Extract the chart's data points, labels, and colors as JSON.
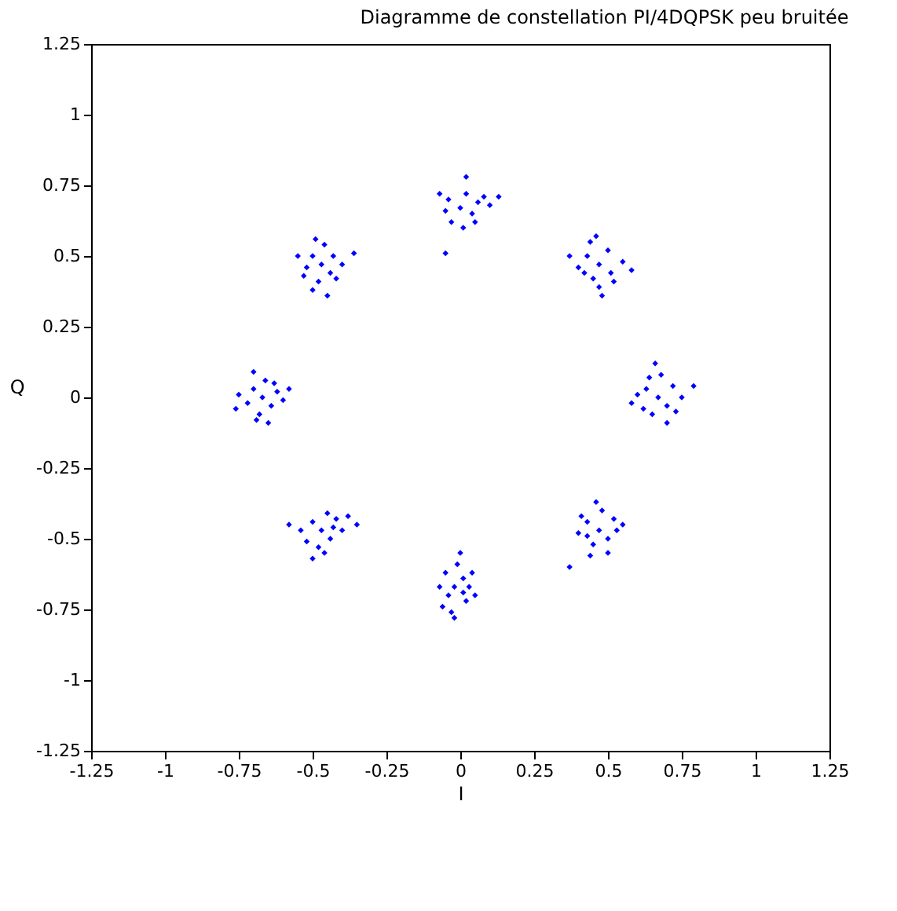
{
  "chart_data": {
    "type": "scatter",
    "title": "Diagramme de constellation PI/4DQPSK peu bruitée",
    "xlabel": "I",
    "ylabel": "Q",
    "xlim": [
      -1.25,
      1.25
    ],
    "ylim": [
      -1.25,
      1.25
    ],
    "xticks": [
      -1.25,
      -1,
      -0.75,
      -0.5,
      -0.25,
      0,
      0.25,
      0.5,
      0.75,
      1,
      1.25
    ],
    "yticks": [
      -1.25,
      -1,
      -0.75,
      -0.5,
      -0.25,
      0,
      0.25,
      0.5,
      0.75,
      1,
      1.25
    ],
    "grid": false,
    "marker": "diamond",
    "series": [
      {
        "color": "#0000ff",
        "x": [
          0,
          -0.04,
          0.04,
          0.02,
          -0.03,
          0.06,
          0.01,
          -0.05,
          0.08,
          0.13,
          -0.05,
          0.02,
          -0.07,
          0.05,
          0.1,
          0.47,
          0.43,
          0.51,
          0.45,
          0.5,
          0.4,
          0.55,
          0.47,
          0.44,
          0.52,
          0.37,
          0.58,
          0.48,
          0.46,
          0.42,
          0.67,
          0.63,
          0.7,
          0.65,
          0.72,
          0.6,
          0.68,
          0.75,
          0.62,
          0.66,
          0.79,
          0.58,
          0.7,
          0.64,
          0.73,
          0.47,
          0.43,
          0.5,
          0.45,
          0.52,
          0.4,
          0.48,
          0.44,
          0.53,
          0.37,
          0.46,
          0.5,
          0.41,
          0.55,
          0.43,
          -0.02,
          0.01,
          -0.04,
          0.02,
          -0.05,
          0.03,
          -0.01,
          -0.03,
          0.05,
          -0.07,
          0.0,
          -0.06,
          0.04,
          -0.02,
          0.01,
          -0.47,
          -0.5,
          -0.44,
          -0.52,
          -0.42,
          -0.48,
          -0.54,
          -0.45,
          -0.4,
          -0.5,
          -0.35,
          -0.58,
          -0.46,
          -0.43,
          -0.38,
          -0.67,
          -0.7,
          -0.64,
          -0.72,
          -0.62,
          -0.68,
          -0.66,
          -0.75,
          -0.6,
          -0.7,
          -0.65,
          -0.76,
          -0.58,
          -0.63,
          -0.69,
          -0.47,
          -0.5,
          -0.44,
          -0.48,
          -0.52,
          -0.43,
          -0.46,
          -0.5,
          -0.4,
          -0.36,
          -0.55,
          -0.45,
          -0.49,
          -0.42,
          -0.53
        ],
        "values": [
          0.67,
          0.7,
          0.65,
          0.72,
          0.62,
          0.69,
          0.6,
          0.66,
          0.71,
          0.71,
          0.51,
          0.78,
          0.72,
          0.62,
          0.68,
          0.47,
          0.5,
          0.44,
          0.42,
          0.52,
          0.46,
          0.48,
          0.39,
          0.55,
          0.41,
          0.5,
          0.45,
          0.36,
          0.57,
          0.44,
          0,
          0.03,
          -0.03,
          -0.06,
          0.04,
          0.01,
          0.08,
          0,
          -0.04,
          0.12,
          0.04,
          -0.02,
          -0.09,
          0.07,
          -0.05,
          -0.47,
          -0.44,
          -0.5,
          -0.52,
          -0.43,
          -0.48,
          -0.4,
          -0.56,
          -0.47,
          -0.6,
          -0.37,
          -0.55,
          -0.42,
          -0.45,
          -0.49,
          -0.67,
          -0.64,
          -0.7,
          -0.72,
          -0.62,
          -0.67,
          -0.59,
          -0.76,
          -0.7,
          -0.67,
          -0.55,
          -0.74,
          -0.62,
          -0.78,
          -0.69,
          -0.47,
          -0.44,
          -0.5,
          -0.51,
          -0.43,
          -0.53,
          -0.47,
          -0.41,
          -0.47,
          -0.57,
          -0.45,
          -0.45,
          -0.55,
          -0.46,
          -0.42,
          0,
          0.03,
          -0.03,
          -0.02,
          0.02,
          -0.06,
          0.06,
          0.01,
          -0.01,
          0.09,
          -0.09,
          -0.04,
          0.03,
          0.05,
          -0.08,
          0.47,
          0.5,
          0.44,
          0.41,
          0.46,
          0.5,
          0.54,
          0.38,
          0.47,
          0.51,
          0.5,
          0.36,
          0.56,
          0.42,
          0.43
        ]
      }
    ]
  }
}
